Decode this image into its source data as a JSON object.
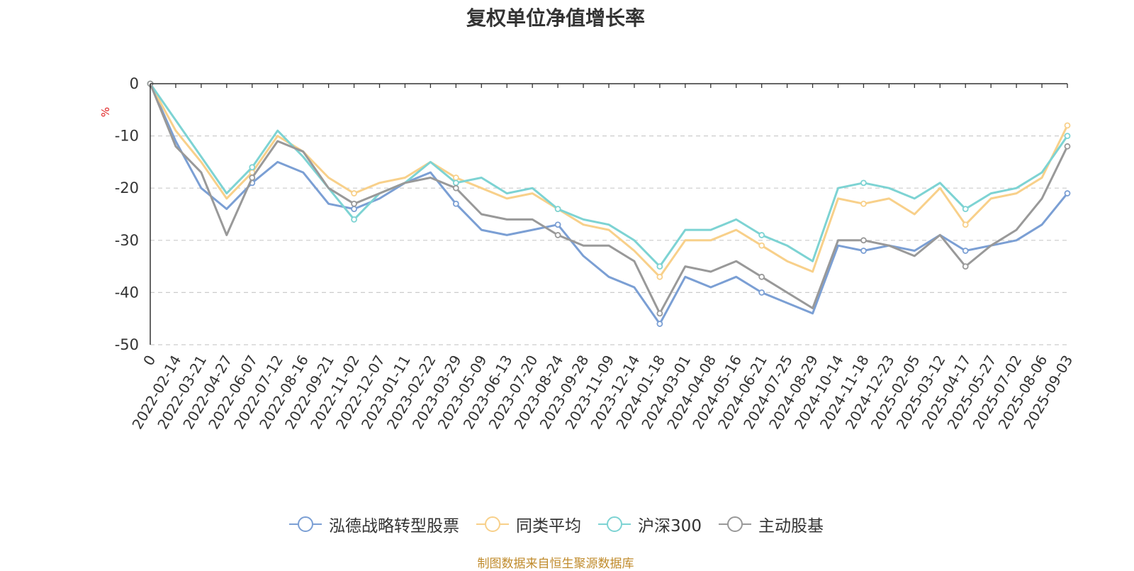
{
  "chart_data": {
    "type": "line",
    "title": "复权单位净值增长率",
    "ylabel": "%",
    "ylim": [
      -50,
      0
    ],
    "yticks": [
      "0",
      "-10",
      "-20",
      "-30",
      "-40",
      "-50"
    ],
    "grid": true,
    "legend_position": "bottom",
    "x": [
      "0",
      "2022-02-14",
      "2022-03-21",
      "2022-04-27",
      "2022-06-07",
      "2022-07-12",
      "2022-08-16",
      "2022-09-21",
      "2022-11-02",
      "2022-12-07",
      "2023-01-11",
      "2023-02-22",
      "2023-03-29",
      "2023-05-09",
      "2023-06-13",
      "2023-07-20",
      "2023-08-24",
      "2023-09-28",
      "2023-11-09",
      "2023-12-14",
      "2024-01-18",
      "2024-03-01",
      "2024-04-08",
      "2024-05-16",
      "2024-06-21",
      "2024-07-25",
      "2024-08-29",
      "2024-10-14",
      "2024-11-18",
      "2024-12-23",
      "2025-02-05",
      "2025-03-12",
      "2025-04-17",
      "2025-05-27",
      "2025-07-02",
      "2025-08-06",
      "2025-09-03"
    ],
    "series": [
      {
        "name": "泓德战略转型股票",
        "color": "#7b9fd4",
        "values": [
          0,
          -11,
          -20,
          -24,
          -19,
          -15,
          -17,
          -23,
          -24,
          -22,
          -19,
          -17,
          -23,
          -28,
          -29,
          -28,
          -27,
          -33,
          -37,
          -39,
          -46,
          -37,
          -39,
          -37,
          -40,
          -42,
          -44,
          -31,
          -32,
          -31,
          -32,
          -29,
          -32,
          -31,
          -30,
          -27,
          -21
        ]
      },
      {
        "name": "同类平均",
        "color": "#f8d08a",
        "values": [
          0,
          -9,
          -15,
          -22,
          -17,
          -10,
          -13,
          -18,
          -21,
          -19,
          -18,
          -15,
          -18,
          -20,
          -22,
          -21,
          -24,
          -27,
          -28,
          -32,
          -37,
          -30,
          -30,
          -28,
          -31,
          -34,
          -36,
          -22,
          -23,
          -22,
          -25,
          -20,
          -27,
          -22,
          -21,
          -18,
          -8
        ]
      },
      {
        "name": "沪深300",
        "color": "#7dd3d3",
        "values": [
          0,
          -7,
          -14,
          -21,
          -16,
          -9,
          -14,
          -20,
          -26,
          -21,
          -19,
          -15,
          -19,
          -18,
          -21,
          -20,
          -24,
          -26,
          -27,
          -30,
          -35,
          -28,
          -28,
          -26,
          -29,
          -31,
          -34,
          -20,
          -19,
          -20,
          -22,
          -19,
          -24,
          -21,
          -20,
          -17,
          -10
        ]
      },
      {
        "name": "主动股基",
        "color": "#999999",
        "values": [
          0,
          -12,
          -17,
          -29,
          -18,
          -11,
          -13,
          -20,
          -23,
          -21,
          -19,
          -18,
          -20,
          -25,
          -26,
          -26,
          -29,
          -31,
          -31,
          -34,
          -44,
          -35,
          -36,
          -34,
          -37,
          -40,
          -43,
          -30,
          -30,
          -31,
          -33,
          -29,
          -35,
          -31,
          -28,
          -22,
          -12
        ]
      }
    ]
  },
  "source_note": "制图数据来自恒生聚源数据库"
}
